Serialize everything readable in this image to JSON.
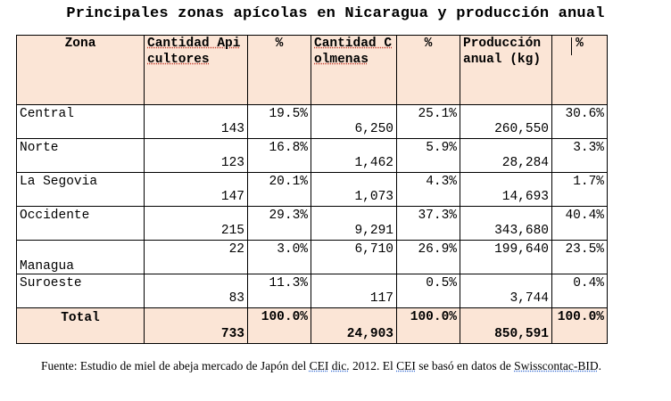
{
  "title": "Principales zonas apícolas en Nicaragua y producción anual",
  "headers": {
    "zona": "Zona",
    "cantidad_apicultores": "Cantidad Apicultores",
    "pct1": "%",
    "cantidad_colmenas": "Cantidad Colmenas",
    "pct2": "%",
    "produccion_anual": "Producción anual (kg)",
    "pct3": "%"
  },
  "rows": [
    {
      "zona": "Central",
      "apicultores": "143",
      "pct_api": "19.5%",
      "colmenas": "6,250",
      "pct_col": "25.1%",
      "produccion": "260,550",
      "pct_prod": "30.6%"
    },
    {
      "zona": "Norte",
      "apicultores": "123",
      "pct_api": "16.8%",
      "colmenas": "1,462",
      "pct_col": "5.9%",
      "produccion": "28,284",
      "pct_prod": "3.3%"
    },
    {
      "zona": "La Segovia",
      "apicultores": "147",
      "pct_api": "20.1%",
      "colmenas": "1,073",
      "pct_col": "4.3%",
      "produccion": "14,693",
      "pct_prod": "1.7%"
    },
    {
      "zona": "Occidente",
      "apicultores": "215",
      "pct_api": "29.3%",
      "colmenas": "9,291",
      "pct_col": "37.3%",
      "produccion": "343,680",
      "pct_prod": "40.4%"
    },
    {
      "zona": "Managua",
      "apicultores": "22",
      "pct_api": "3.0%",
      "colmenas": "6,710",
      "pct_col": "26.9%",
      "produccion": "199,640",
      "pct_prod": "23.5%"
    },
    {
      "zona": "Suroeste",
      "apicultores": "83",
      "pct_api": "11.3%",
      "colmenas": "117",
      "pct_col": "0.5%",
      "produccion": "3,744",
      "pct_prod": "0.4%"
    }
  ],
  "total": {
    "label": "Total",
    "apicultores": "733",
    "pct_api": "100.0%",
    "colmenas": "24,903",
    "pct_col": "100.0%",
    "produccion": "850,591",
    "pct_prod": "100.0%"
  },
  "note": {
    "text_1": "Fuente: Estudio de miel de abeja mercado de Japón  del ",
    "cei_1": "CEI",
    "text_2": " ",
    "dic": "dic.",
    "text_3": " 2012. El ",
    "cei_2": "CEI",
    "text_4": " se basó en datos de ",
    "swiss": "Swisscontac-BID",
    "text_5": "."
  }
}
